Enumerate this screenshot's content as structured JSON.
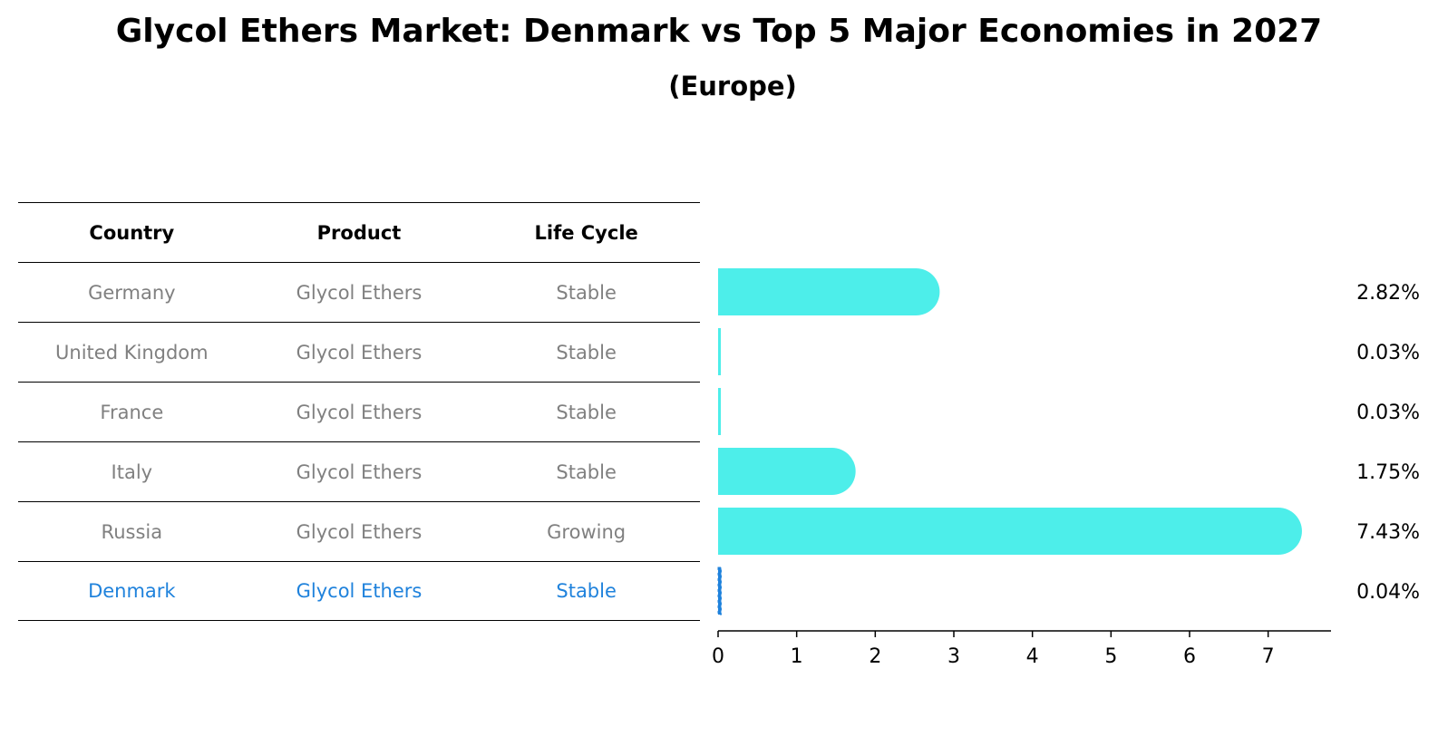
{
  "title": "Glycol Ethers Market: Denmark vs Top 5 Major Economies in 2027",
  "subtitle": "(Europe)",
  "table": {
    "headers": [
      "Country",
      "Product",
      "Life Cycle"
    ],
    "rows": [
      [
        "Germany",
        "Glycol Ethers",
        "Stable"
      ],
      [
        "United Kingdom",
        "Glycol Ethers",
        "Stable"
      ],
      [
        "France",
        "Glycol Ethers",
        "Stable"
      ],
      [
        "Italy",
        "Glycol Ethers",
        "Stable"
      ],
      [
        "Russia",
        "Glycol Ethers",
        "Growing"
      ],
      [
        "Denmark",
        "Glycol Ethers",
        "Stable"
      ]
    ],
    "highlight_row": 5
  },
  "chart_data": {
    "type": "bar",
    "orientation": "horizontal",
    "categories": [
      "Germany",
      "United Kingdom",
      "France",
      "Italy",
      "Russia",
      "Denmark"
    ],
    "values": [
      2.82,
      0.03,
      0.03,
      1.75,
      7.43,
      0.04
    ],
    "value_labels": [
      "2.82%",
      "0.03%",
      "0.03%",
      "1.75%",
      "7.43%",
      "0.04%"
    ],
    "xlim": [
      0,
      7.8
    ],
    "xticks": [
      0,
      1,
      2,
      3,
      4,
      5,
      6,
      7
    ],
    "bar_color": "#4deeea",
    "highlight_color": "#1f82dc",
    "highlight_index": 5,
    "grid": false,
    "legend": "none"
  }
}
